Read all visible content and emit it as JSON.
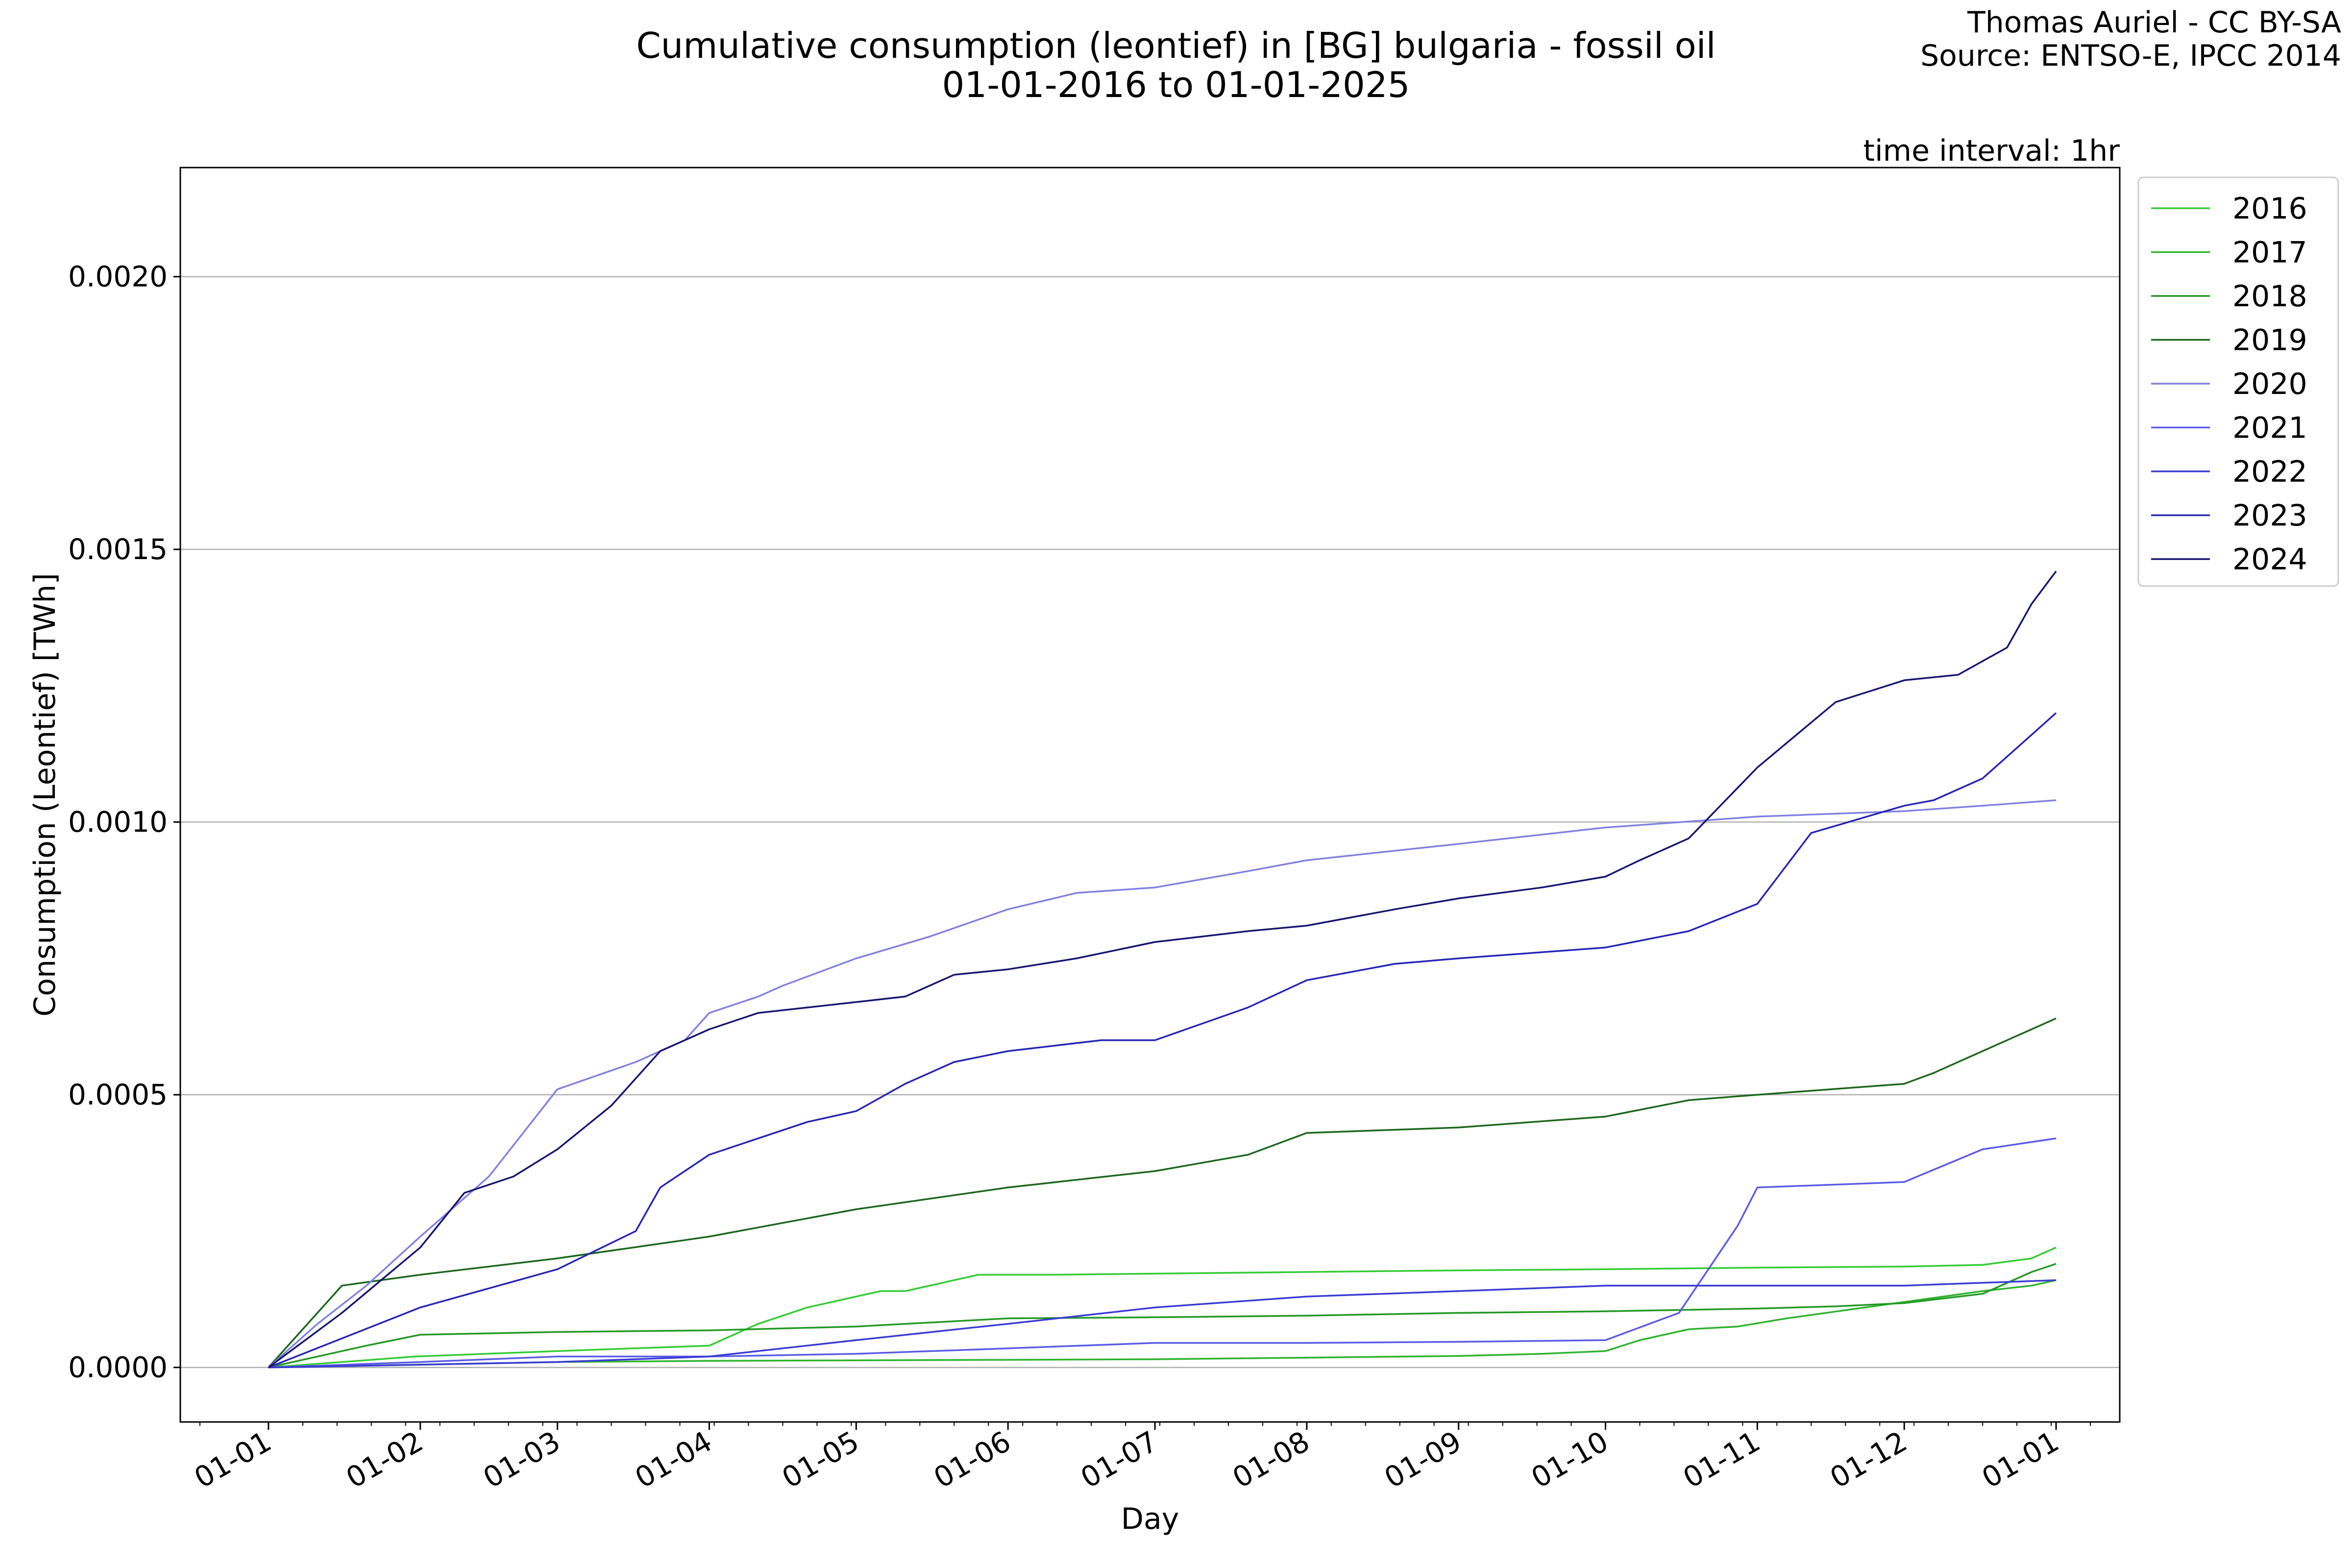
{
  "chart_data": {
    "type": "line",
    "title": "Cumulative consumption (leontief) in [BG] bulgaria - fossil oil",
    "subtitle": "01-01-2016 to 01-01-2025",
    "credit_line1": "Thomas Auriel - CC BY-SA",
    "credit_line2": "Source: ENTSO-E, IPCC 2014",
    "annotation": "time interval: 1hr",
    "xlabel": "Day",
    "ylabel": "Consumption (Leontief) [TWh]",
    "x_tick_labels": [
      "01-01",
      "01-02",
      "01-03",
      "01-04",
      "01-05",
      "01-06",
      "01-07",
      "01-08",
      "01-09",
      "01-10",
      "01-11",
      "01-12",
      "01-01"
    ],
    "x_tick_days": [
      0,
      31,
      59,
      90,
      120,
      151,
      181,
      212,
      243,
      273,
      304,
      334,
      365
    ],
    "xlim_days": [
      -18,
      378
    ],
    "y_tick_labels": [
      "0.0000",
      "0.0005",
      "0.0010",
      "0.0015",
      "0.0020"
    ],
    "y_tick_values": [
      0,
      0.0005,
      0.001,
      0.0015,
      0.002
    ],
    "ylim": [
      -0.0001,
      0.0022
    ],
    "grid": "horizontal",
    "legend_position": "outside-top-right",
    "series": [
      {
        "name": "2016",
        "color": "#33cc33",
        "x": [
          0,
          30,
          59,
          90,
          95,
          100,
          110,
          120,
          125,
          130,
          140,
          145,
          150,
          160,
          181,
          212,
          243,
          273,
          304,
          334,
          350,
          360,
          365
        ],
        "y": [
          0,
          2e-05,
          3e-05,
          4e-05,
          6e-05,
          8e-05,
          0.00011,
          0.00013,
          0.00014,
          0.00014,
          0.00016,
          0.00017,
          0.00017,
          0.00017,
          0.000172,
          0.000175,
          0.000178,
          0.00018,
          0.000183,
          0.000185,
          0.000188,
          0.0002,
          0.00022
        ]
      },
      {
        "name": "2017",
        "color": "#2db32d",
        "x": [
          0,
          59,
          90,
          120,
          151,
          181,
          212,
          243,
          260,
          273,
          280,
          290,
          300,
          310,
          334,
          350,
          360,
          365
        ],
        "y": [
          0,
          1e-05,
          1.2e-05,
          1.3e-05,
          1.4e-05,
          1.5e-05,
          1.8e-05,
          2.1e-05,
          2.5e-05,
          3e-05,
          5e-05,
          7e-05,
          7.5e-05,
          9e-05,
          0.00012,
          0.00014,
          0.00015,
          0.00016
        ]
      },
      {
        "name": "2018",
        "color": "#229922",
        "x": [
          0,
          10,
          20,
          31,
          59,
          90,
          120,
          151,
          181,
          212,
          243,
          273,
          304,
          320,
          334,
          350,
          360,
          365
        ],
        "y": [
          0,
          2e-05,
          4e-05,
          6e-05,
          6.5e-05,
          6.8e-05,
          7.5e-05,
          9e-05,
          9.2e-05,
          9.5e-05,
          0.0001,
          0.000103,
          0.000108,
          0.000112,
          0.000118,
          0.000135,
          0.000175,
          0.00019
        ]
      },
      {
        "name": "2019",
        "color": "#1a661a",
        "x": [
          0,
          15,
          31,
          59,
          90,
          120,
          151,
          181,
          200,
          212,
          243,
          273,
          290,
          304,
          334,
          340,
          350,
          360,
          365
        ],
        "y": [
          0,
          0.00015,
          0.00017,
          0.0002,
          0.00024,
          0.00029,
          0.00033,
          0.00036,
          0.00039,
          0.00043,
          0.00044,
          0.00046,
          0.00049,
          0.0005,
          0.00052,
          0.00054,
          0.00058,
          0.00062,
          0.00064
        ]
      },
      {
        "name": "2020",
        "color": "#8080e0",
        "x": [
          0,
          10,
          20,
          31,
          45,
          59,
          75,
          80,
          85,
          90,
          100,
          105,
          120,
          135,
          151,
          165,
          181,
          200,
          212,
          243,
          273,
          304,
          334,
          350,
          365
        ],
        "y": [
          0,
          8e-05,
          0.00015,
          0.00024,
          0.00035,
          0.00051,
          0.00056,
          0.00058,
          0.0006,
          0.00065,
          0.00068,
          0.0007,
          0.00075,
          0.00079,
          0.00084,
          0.00087,
          0.00088,
          0.00091,
          0.00093,
          0.00096,
          0.00099,
          0.00101,
          0.00102,
          0.00103,
          0.00104
        ]
      },
      {
        "name": "2021",
        "color": "#5a5ae6",
        "x": [
          0,
          31,
          59,
          90,
          120,
          151,
          181,
          212,
          243,
          273,
          288,
          300,
          304,
          334,
          350,
          365
        ],
        "y": [
          0,
          1e-05,
          2e-05,
          2e-05,
          2.5e-05,
          3.5e-05,
          4.5e-05,
          4.5e-05,
          4.7e-05,
          5e-05,
          0.0001,
          0.00026,
          0.00033,
          0.00034,
          0.0004,
          0.00042
        ]
      },
      {
        "name": "2022",
        "color": "#3a3ad6",
        "x": [
          0,
          31,
          59,
          90,
          120,
          151,
          181,
          212,
          243,
          273,
          304,
          334,
          365
        ],
        "y": [
          0,
          5e-06,
          1e-05,
          2e-05,
          5e-05,
          8e-05,
          0.00011,
          0.00013,
          0.00014,
          0.00015,
          0.00015,
          0.00015,
          0.00016
        ]
      },
      {
        "name": "2023",
        "color": "#2424b8",
        "x": [
          0,
          31,
          59,
          75,
          80,
          85,
          90,
          100,
          110,
          120,
          130,
          140,
          151,
          170,
          181,
          200,
          212,
          230,
          243,
          273,
          290,
          304,
          315,
          334,
          340,
          350,
          360,
          365
        ],
        "y": [
          0,
          0.00011,
          0.00018,
          0.00025,
          0.00033,
          0.00036,
          0.00039,
          0.00042,
          0.00045,
          0.00047,
          0.00052,
          0.00056,
          0.00058,
          0.0006,
          0.0006,
          0.00066,
          0.00071,
          0.00074,
          0.00075,
          0.00077,
          0.0008,
          0.00085,
          0.00098,
          0.00103,
          0.00104,
          0.00108,
          0.00116,
          0.0012
        ]
      },
      {
        "name": "2024",
        "color": "#141470",
        "x": [
          0,
          15,
          31,
          40,
          50,
          59,
          70,
          80,
          90,
          100,
          110,
          120,
          130,
          140,
          151,
          165,
          181,
          200,
          212,
          230,
          243,
          260,
          273,
          280,
          290,
          304,
          320,
          334,
          345,
          355,
          360,
          365
        ],
        "y": [
          0,
          0.0001,
          0.00022,
          0.00032,
          0.00035,
          0.0004,
          0.00048,
          0.00058,
          0.00062,
          0.00065,
          0.00066,
          0.00067,
          0.00068,
          0.00072,
          0.00073,
          0.00075,
          0.00078,
          0.0008,
          0.00081,
          0.00084,
          0.00086,
          0.00088,
          0.0009,
          0.00093,
          0.00097,
          0.0011,
          0.00122,
          0.00126,
          0.00127,
          0.00132,
          0.0014,
          0.00146
        ]
      }
    ]
  }
}
